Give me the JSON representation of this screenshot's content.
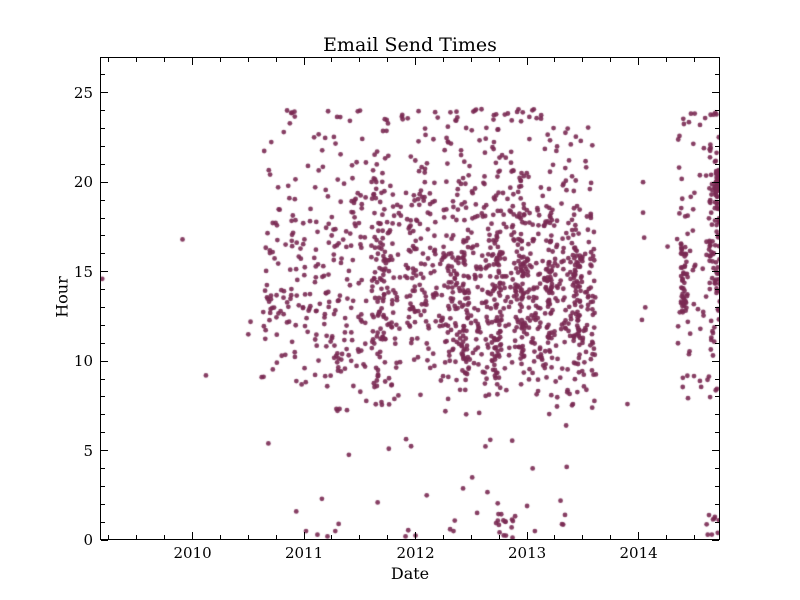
{
  "chart_data": {
    "type": "scatter",
    "title": "Email Send Times",
    "xlabel": "Date",
    "ylabel": "Hour",
    "xlim": [
      2009.17,
      2014.73
    ],
    "ylim": [
      0,
      27
    ],
    "grid": false,
    "legend": null,
    "xticks": {
      "major": [
        2010,
        2011,
        2012,
        2013,
        2014
      ],
      "labels": [
        "2010",
        "2011",
        "2012",
        "2013",
        "2014"
      ],
      "minor_step": 0.25
    },
    "yticks": {
      "major": [
        0,
        5,
        10,
        15,
        20,
        25
      ],
      "labels": [
        "0",
        "5",
        "10",
        "15",
        "20",
        "25"
      ],
      "minor_step": 1
    },
    "marker": {
      "shape": "circle",
      "color": "#7a2a53",
      "alpha": 0.9,
      "radius": 2.4
    },
    "background_color": "#ffffff",
    "axis_color": "#000000",
    "seed": 42,
    "points": [
      [
        2009.19,
        14.6
      ],
      [
        2009.91,
        16.8
      ],
      [
        2010.12,
        9.2
      ],
      [
        2010.5,
        11.5
      ],
      [
        2010.52,
        12.2
      ],
      [
        2010.62,
        9.1
      ],
      [
        2010.68,
        5.4
      ],
      [
        2010.93,
        1.6
      ],
      [
        2011.12,
        0.3
      ],
      [
        2011.16,
        2.3
      ],
      [
        2011.21,
        0.2
      ],
      [
        2011.28,
        0.5
      ],
      [
        2011.31,
        0.9
      ],
      [
        2011.66,
        2.1
      ],
      [
        2011.76,
        5.1
      ],
      [
        2011.91,
        0.2
      ],
      [
        2012.1,
        2.5
      ],
      [
        2012.31,
        0.6
      ],
      [
        2012.34,
        0.5
      ],
      [
        2012.67,
        5.6
      ],
      [
        2013.0,
        1.9
      ],
      [
        2013.05,
        4.0
      ],
      [
        2013.07,
        0.5
      ],
      [
        2013.3,
        2.2
      ],
      [
        2013.34,
        1.4
      ],
      [
        2013.35,
        6.4
      ],
      [
        2013.9,
        7.6
      ],
      [
        2014.03,
        12.3
      ],
      [
        2014.06,
        13.0
      ],
      [
        2014.04,
        18.3
      ],
      [
        2014.05,
        16.9
      ],
      [
        2014.04,
        20.0
      ],
      [
        2014.26,
        16.4
      ],
      [
        2014.62,
        0.3
      ],
      [
        2014.68,
        1.2
      ],
      [
        2014.71,
        0.4
      ],
      [
        2014.72,
        1.1
      ]
    ],
    "clusters": [
      {
        "name": "band-2010H2",
        "x": [
          2010.63,
          2011.06
        ],
        "n": 105,
        "y": {
          "type": "normal",
          "mean": 14.8,
          "sd": 4.0,
          "min": 8.6,
          "max": 24
        }
      },
      {
        "name": "band-2011H1",
        "x": [
          2011.09,
          2011.56
        ],
        "n": 150,
        "y": {
          "type": "normal",
          "mean": 14.3,
          "sd": 4.2,
          "min": 7.2,
          "max": 24
        }
      },
      {
        "name": "column-2011.65",
        "x": [
          2011.6,
          2011.73
        ],
        "n": 110,
        "y": {
          "type": "normal",
          "mean": 14.0,
          "sd": 3.9,
          "min": 7.5,
          "max": 24
        }
      },
      {
        "name": "band-2011Q4",
        "x": [
          2011.73,
          2011.87
        ],
        "n": 55,
        "y": {
          "type": "normal",
          "mean": 14.5,
          "sd": 4.0,
          "min": 7.5,
          "max": 24
        }
      },
      {
        "name": "band-2012Q1",
        "x": [
          2011.9,
          2012.19
        ],
        "n": 125,
        "y": {
          "type": "normal",
          "mean": 14.8,
          "sd": 4.0,
          "min": 7.5,
          "max": 24
        }
      },
      {
        "name": "mass-2012-2013",
        "x": [
          2012.21,
          2013.62
        ],
        "n": 600,
        "y": {
          "type": "normal",
          "mean": 13.3,
          "sd": 3.2,
          "min": 6.9,
          "max": 24
        }
      },
      {
        "name": "stripe-2012.45",
        "x": [
          2012.42,
          2012.47
        ],
        "n": 40,
        "y": {
          "type": "normal",
          "mean": 13.5,
          "sd": 3.2,
          "min": 7.0,
          "max": 22
        }
      },
      {
        "name": "stripe-2012.73",
        "x": [
          2012.7,
          2012.76
        ],
        "n": 45,
        "y": {
          "type": "normal",
          "mean": 12.8,
          "sd": 3.0,
          "min": 7.0,
          "max": 21
        }
      },
      {
        "name": "stripe-2012.95",
        "x": [
          2012.93,
          2012.98
        ],
        "n": 40,
        "y": {
          "type": "normal",
          "mean": 13.2,
          "sd": 3.0,
          "min": 7.5,
          "max": 22
        }
      },
      {
        "name": "stripe-2013.2",
        "x": [
          2013.18,
          2013.23
        ],
        "n": 35,
        "y": {
          "type": "normal",
          "mean": 13.0,
          "sd": 3.0,
          "min": 8.0,
          "max": 21
        }
      },
      {
        "name": "stripe-2013.45",
        "x": [
          2013.42,
          2013.48
        ],
        "n": 40,
        "y": {
          "type": "normal",
          "mean": 13.5,
          "sd": 3.2,
          "min": 8.0,
          "max": 22
        }
      },
      {
        "name": "evening-2012-2013",
        "x": [
          2012.25,
          2013.6
        ],
        "n": 110,
        "y": {
          "type": "uniform",
          "min": 16.5,
          "max": 23.2
        }
      },
      {
        "name": "midnight-row-2012",
        "x": [
          2012.3,
          2013.15
        ],
        "n": 25,
        "y": {
          "type": "uniform",
          "min": 23.4,
          "max": 24.1
        }
      },
      {
        "name": "midnight-row-2011a",
        "x": [
          2010.8,
          2011.55
        ],
        "n": 10,
        "y": {
          "type": "uniform",
          "min": 23.4,
          "max": 24.05
        }
      },
      {
        "name": "midnight-row-2011b",
        "x": [
          2011.6,
          2012.2
        ],
        "n": 9,
        "y": {
          "type": "uniform",
          "min": 23.4,
          "max": 24.0
        }
      },
      {
        "name": "column-2014.4",
        "x": [
          2014.38,
          2014.43
        ],
        "n": 42,
        "y": {
          "type": "normal",
          "mean": 14.3,
          "sd": 1.8,
          "min": 12.4,
          "max": 17.2
        }
      },
      {
        "name": "band-2014H2",
        "x": [
          2014.34,
          2014.62
        ],
        "n": 55,
        "y": {
          "type": "normal",
          "mean": 14.5,
          "sd": 4.5,
          "min": 7.5,
          "max": 23.5
        }
      },
      {
        "name": "edge-2014.7",
        "x": [
          2014.63,
          2014.73
        ],
        "n": 95,
        "y": {
          "type": "normal",
          "mean": 15.5,
          "sd": 4.6,
          "min": 7.8,
          "max": 24
        }
      },
      {
        "name": "blob-2014.7-20h",
        "x": [
          2014.68,
          2014.725
        ],
        "n": 32,
        "y": {
          "type": "normal",
          "mean": 19.9,
          "sd": 0.55,
          "min": 18.8,
          "max": 21.2
        }
      },
      {
        "name": "midnight-row-2014",
        "x": [
          2014.4,
          2014.72
        ],
        "n": 10,
        "y": {
          "type": "uniform",
          "min": 23.2,
          "max": 24.05
        }
      },
      {
        "name": "night-scatter",
        "x": [
          2011.0,
          2013.35
        ],
        "n": 10,
        "y": {
          "type": "uniform",
          "min": 0.1,
          "max": 2.9
        }
      },
      {
        "name": "night-cluster-2012.8",
        "x": [
          2012.7,
          2012.9
        ],
        "n": 16,
        "y": {
          "type": "uniform",
          "min": 0.1,
          "max": 1.6
        }
      },
      {
        "name": "night-2014",
        "x": [
          2014.6,
          2014.73
        ],
        "n": 5,
        "y": {
          "type": "uniform",
          "min": 0.2,
          "max": 1.4
        }
      },
      {
        "name": "early-morning-sparse",
        "x": [
          2011.4,
          2013.4
        ],
        "n": 7,
        "y": {
          "type": "uniform",
          "min": 3.3,
          "max": 6.6
        }
      }
    ]
  }
}
